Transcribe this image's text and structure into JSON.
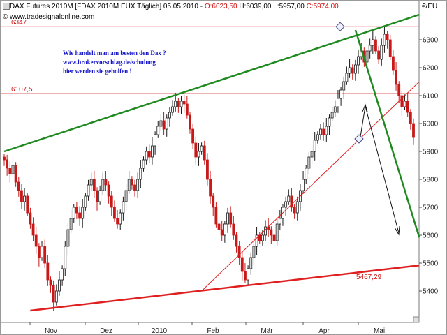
{
  "header": {
    "instrument": "DAX Futures 2010M [FDAX 2010M EUX  Täglich] 05.05.2010 - ",
    "open": "O:6023,50",
    "high": "H:6039,00",
    "low": "L:5957,00",
    "close": "C:5974,00",
    "watermark": "www.tradesignalonline.com",
    "currency": "€/EU"
  },
  "annotation": {
    "line1": "Wie handelt man am besten den Dax ?",
    "line2": "www.brokervorschlag.de/schulung",
    "line3": "hier werden sie geholfen !"
  },
  "levels": {
    "upper": "6347",
    "middle": "6107,5",
    "lower": "5467,29"
  },
  "colors": {
    "bull": "#1a1a1a",
    "bear": "#c81818",
    "trend_green": "#1f8a1f",
    "trend_red": "#e02020",
    "level_line": "#e06060",
    "annotation": "#1515c8"
  },
  "chart_data": {
    "type": "candlestick",
    "title": "DAX Futures 2010M [FDAX 2010M EUX  Täglich] 05.05.2010",
    "x_labels": [
      "Nov",
      "Dez",
      "2010",
      "Feb",
      "Mär",
      "Apr",
      "Mai"
    ],
    "y_ticks": [
      5400,
      5500,
      5600,
      5700,
      5800,
      5900,
      6000,
      6100,
      6200,
      6300
    ],
    "ylim": [
      5325,
      6385
    ],
    "y_axis": "right",
    "grid": false,
    "close_series": [
      5870,
      5840,
      5820,
      5850,
      5790,
      5760,
      5720,
      5740,
      5680,
      5640,
      5600,
      5560,
      5520,
      5560,
      5500,
      5440,
      5420,
      5360,
      5400,
      5440,
      5480,
      5560,
      5620,
      5660,
      5700,
      5680,
      5660,
      5700,
      5740,
      5780,
      5800,
      5760,
      5720,
      5760,
      5800,
      5780,
      5740,
      5700,
      5660,
      5640,
      5680,
      5720,
      5760,
      5800,
      5780,
      5760,
      5800,
      5840,
      5870,
      5900,
      5880,
      5920,
      5960,
      5990,
      6010,
      5980,
      6020,
      6040,
      6060,
      6080,
      6060,
      6080,
      6070,
      6030,
      5980,
      5930,
      5880,
      5900,
      5920,
      5870,
      5800,
      5740,
      5700,
      5640,
      5620,
      5600,
      5640,
      5680,
      5640,
      5600,
      5560,
      5520,
      5470,
      5440,
      5480,
      5520,
      5560,
      5600,
      5580,
      5600,
      5630,
      5620,
      5600,
      5580,
      5640,
      5660,
      5700,
      5720,
      5740,
      5700,
      5680,
      5720,
      5760,
      5800,
      5840,
      5880,
      5900,
      5940,
      5960,
      5980,
      5960,
      5990,
      6020,
      6040,
      6060,
      6090,
      6120,
      6150,
      6180,
      6200,
      6180,
      6210,
      6240,
      6260,
      6220,
      6260,
      6280,
      6300,
      6260,
      6230,
      6280,
      6320,
      6300,
      6240,
      6190,
      6140,
      6100,
      6060,
      6080,
      6040,
      6000,
      5950
    ],
    "highlighted_close": 5974,
    "trendlines": [
      {
        "color": "green",
        "from": {
          "index": 0,
          "value": 5900
        },
        "to": {
          "index": 143,
          "value": 6390
        }
      },
      {
        "color": "green",
        "from": {
          "index": 121,
          "value": 6335
        },
        "to": {
          "index": 143,
          "value": 5592
        }
      },
      {
        "color": "red",
        "from": {
          "index": 9,
          "value": 5330
        },
        "to": {
          "index": 143,
          "value": 5492
        }
      },
      {
        "color": "red",
        "from": {
          "index": 68,
          "value": 5400
        },
        "to": {
          "index": 143,
          "value": 6150
        }
      }
    ],
    "levels": [
      {
        "value": 6347,
        "label": "6347"
      },
      {
        "value": 6107.5,
        "label": "6107,5"
      },
      {
        "value": 5467.29,
        "label": "5467,29"
      }
    ],
    "markers": [
      6347,
      5945
    ]
  }
}
